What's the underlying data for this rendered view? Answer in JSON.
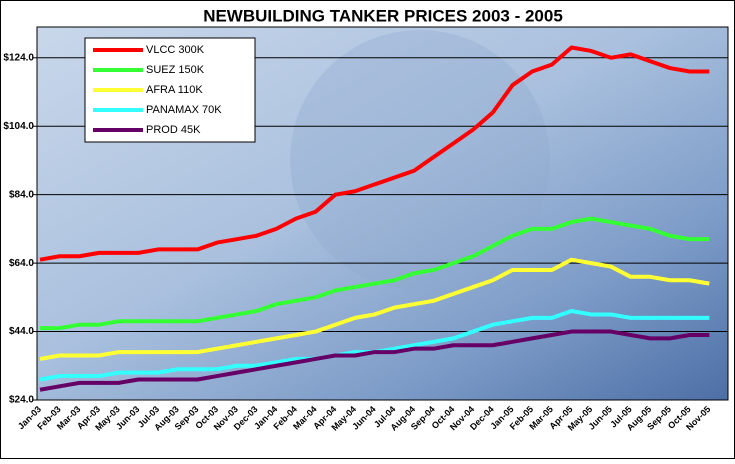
{
  "chart_data": {
    "type": "line",
    "title": "NEWBUILDING TANKER PRICES 2003 - 2005",
    "categories": [
      "Jan-03",
      "Feb-03",
      "Mar-03",
      "Apr-03",
      "May-03",
      "Jun-03",
      "Jul-03",
      "Aug-03",
      "Sep-03",
      "Oct-03",
      "Nov-03",
      "Dec-03",
      "Jan-04",
      "Feb-04",
      "Mar-04",
      "Apr-04",
      "May-04",
      "Jun-04",
      "Jul-04",
      "Aug-04",
      "Sep-04",
      "Oct-04",
      "Nov-04",
      "Dec-04",
      "Jan-05",
      "Feb-05",
      "Mar-05",
      "Apr-05",
      "May-05",
      "Jun-05",
      "Jul-05",
      "Aug-05",
      "Sep-05",
      "Oct-05",
      "Nov-05"
    ],
    "series": [
      {
        "name": "VLCC 300K",
        "color": "#ff0000",
        "values": [
          65,
          66,
          66,
          67,
          67,
          67,
          68,
          68,
          68,
          70,
          71,
          72,
          74,
          77,
          79,
          84,
          85,
          87,
          89,
          91,
          95,
          99,
          103,
          108,
          116,
          120,
          122,
          127,
          126,
          124,
          125,
          123,
          121,
          120,
          120
        ]
      },
      {
        "name": "SUEZ 150K",
        "color": "#33ff33",
        "values": [
          45,
          45,
          46,
          46,
          47,
          47,
          47,
          47,
          47,
          48,
          49,
          50,
          52,
          53,
          54,
          56,
          57,
          58,
          59,
          61,
          62,
          64,
          66,
          69,
          72,
          74,
          74,
          76,
          77,
          76,
          75,
          74,
          72,
          71,
          71
        ]
      },
      {
        "name": "AFRA 110K",
        "color": "#ffff33",
        "values": [
          36,
          37,
          37,
          37,
          38,
          38,
          38,
          38,
          38,
          39,
          40,
          41,
          42,
          43,
          44,
          46,
          48,
          49,
          51,
          52,
          53,
          55,
          57,
          59,
          62,
          62,
          62,
          65,
          64,
          63,
          60,
          60,
          59,
          59,
          58
        ]
      },
      {
        "name": "PANAMAX 70K",
        "color": "#33ffff",
        "values": [
          30,
          31,
          31,
          31,
          32,
          32,
          32,
          33,
          33,
          33,
          34,
          34,
          35,
          36,
          36,
          37,
          38,
          38,
          39,
          40,
          41,
          42,
          44,
          46,
          47,
          48,
          48,
          50,
          49,
          49,
          48,
          48,
          48,
          48,
          48
        ]
      },
      {
        "name": "PROD 45K",
        "color": "#660066",
        "values": [
          27,
          28,
          29,
          29,
          29,
          30,
          30,
          30,
          30,
          31,
          32,
          33,
          34,
          35,
          36,
          37,
          37,
          38,
          38,
          39,
          39,
          40,
          40,
          40,
          41,
          42,
          43,
          44,
          44,
          44,
          43,
          42,
          42,
          43,
          43
        ]
      }
    ],
    "ylim": [
      24,
      133
    ],
    "yticks": [
      {
        "value": 24,
        "label": "$24.0"
      },
      {
        "value": 44,
        "label": "$44.0"
      },
      {
        "value": 64,
        "label": "$64.0"
      },
      {
        "value": 84,
        "label": "$84.0"
      },
      {
        "value": 104,
        "label": "$104.0"
      },
      {
        "value": 124,
        "label": "$124.0"
      }
    ],
    "grid": true
  }
}
